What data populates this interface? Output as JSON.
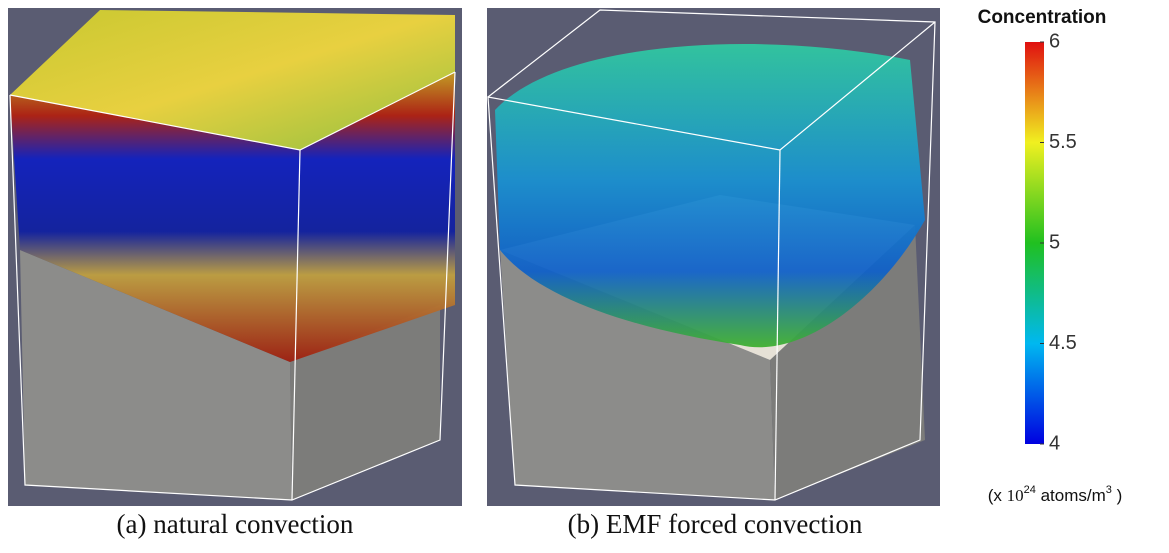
{
  "panels": [
    {
      "caption": "(a) natural convection"
    },
    {
      "caption": "(b) EMF forced convection"
    }
  ],
  "colorbar": {
    "title": "Concentration",
    "min": 4,
    "max": 6,
    "ticks": [
      4,
      4.5,
      5,
      5.5,
      6
    ],
    "unit_label": [
      "(x ",
      "10",
      "24",
      " atoms/m",
      "3",
      " )"
    ]
  }
}
